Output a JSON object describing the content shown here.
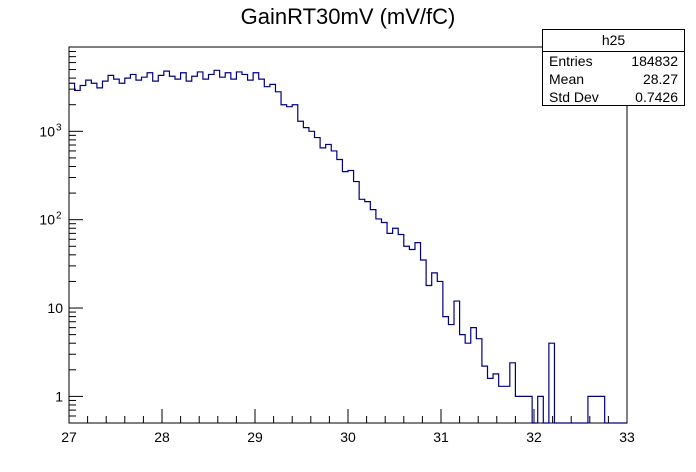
{
  "title": "GainRT30mV (mV/fC)",
  "stats": {
    "name": "h25",
    "rows": [
      {
        "label": "Entries",
        "value": "184832"
      },
      {
        "label": "Mean",
        "value": "28.27"
      },
      {
        "label": "Std Dev",
        "value": "0.7426"
      }
    ]
  },
  "colors": {
    "histogram": "#000080",
    "axis": "#000000"
  },
  "chart_data": {
    "type": "bar",
    "title": "GainRT30mV (mV/fC)",
    "xlabel": "",
    "ylabel": "",
    "xlim": [
      27,
      33
    ],
    "ylim": [
      0.5,
      9000
    ],
    "yscale": "log",
    "grid": false,
    "legend": "none",
    "bin_width": 0.06,
    "x_ticks": [
      {
        "value": 27,
        "label": "27"
      },
      {
        "value": 28,
        "label": "28"
      },
      {
        "value": 29,
        "label": "29"
      },
      {
        "value": 30,
        "label": "30"
      },
      {
        "value": 31,
        "label": "31"
      },
      {
        "value": 32,
        "label": "32"
      },
      {
        "value": 33,
        "label": "33"
      }
    ],
    "y_ticks": [
      {
        "value": 1,
        "label": "1"
      },
      {
        "value": 10,
        "label": "10"
      },
      {
        "value": 100,
        "label": "10",
        "exp": "2"
      },
      {
        "value": 1000,
        "label": "10",
        "exp": "3"
      }
    ],
    "x": [
      27.0,
      27.06,
      27.12,
      27.18,
      27.24,
      27.3,
      27.36,
      27.42,
      27.48,
      27.54,
      27.6,
      27.66,
      27.72,
      27.78,
      27.84,
      27.9,
      27.96,
      28.02,
      28.08,
      28.14,
      28.2,
      28.26,
      28.32,
      28.38,
      28.44,
      28.5,
      28.56,
      28.62,
      28.68,
      28.74,
      28.8,
      28.86,
      28.92,
      28.98,
      29.04,
      29.1,
      29.16,
      29.22,
      29.28,
      29.34,
      29.4,
      29.46,
      29.52,
      29.58,
      29.64,
      29.7,
      29.76,
      29.82,
      29.88,
      29.94,
      30.0,
      30.06,
      30.12,
      30.18,
      30.24,
      30.3,
      30.36,
      30.42,
      30.48,
      30.54,
      30.6,
      30.66,
      30.72,
      30.78,
      30.84,
      30.9,
      30.96,
      31.02,
      31.08,
      31.14,
      31.2,
      31.26,
      31.32,
      31.38,
      31.44,
      31.5,
      31.56,
      31.62,
      31.68,
      31.74,
      31.8,
      31.86,
      31.92,
      31.98,
      32.04,
      32.1,
      32.16,
      32.22,
      32.28,
      32.34,
      32.4,
      32.46,
      32.52,
      32.58,
      32.64,
      32.7,
      32.76,
      32.82,
      32.88,
      32.94
    ],
    "values": [
      3500,
      2900,
      3300,
      3800,
      3500,
      3100,
      3700,
      4300,
      3900,
      3500,
      4000,
      4400,
      3800,
      4100,
      4600,
      3700,
      4300,
      4800,
      4200,
      3900,
      4600,
      3700,
      4200,
      4700,
      3900,
      4400,
      4900,
      4100,
      4600,
      3900,
      4700,
      4400,
      3800,
      4600,
      3900,
      3200,
      3400,
      2800,
      2000,
      1900,
      2000,
      1300,
      1100,
      1000,
      850,
      650,
      710,
      600,
      480,
      350,
      360,
      270,
      170,
      160,
      130,
      102,
      93,
      70,
      80,
      68,
      50,
      46,
      55,
      35,
      18,
      25,
      20,
      8,
      6.5,
      12,
      5,
      4,
      6,
      4.5,
      2.2,
      1.6,
      1.8,
      1.3,
      1.3,
      2.4,
      1,
      1,
      1,
      0.1,
      1,
      0.1,
      4,
      0.1,
      0.1,
      0.1,
      0.1,
      0.1,
      0.1,
      1,
      1,
      1,
      0.1,
      0.1,
      0.1,
      0.1
    ]
  }
}
